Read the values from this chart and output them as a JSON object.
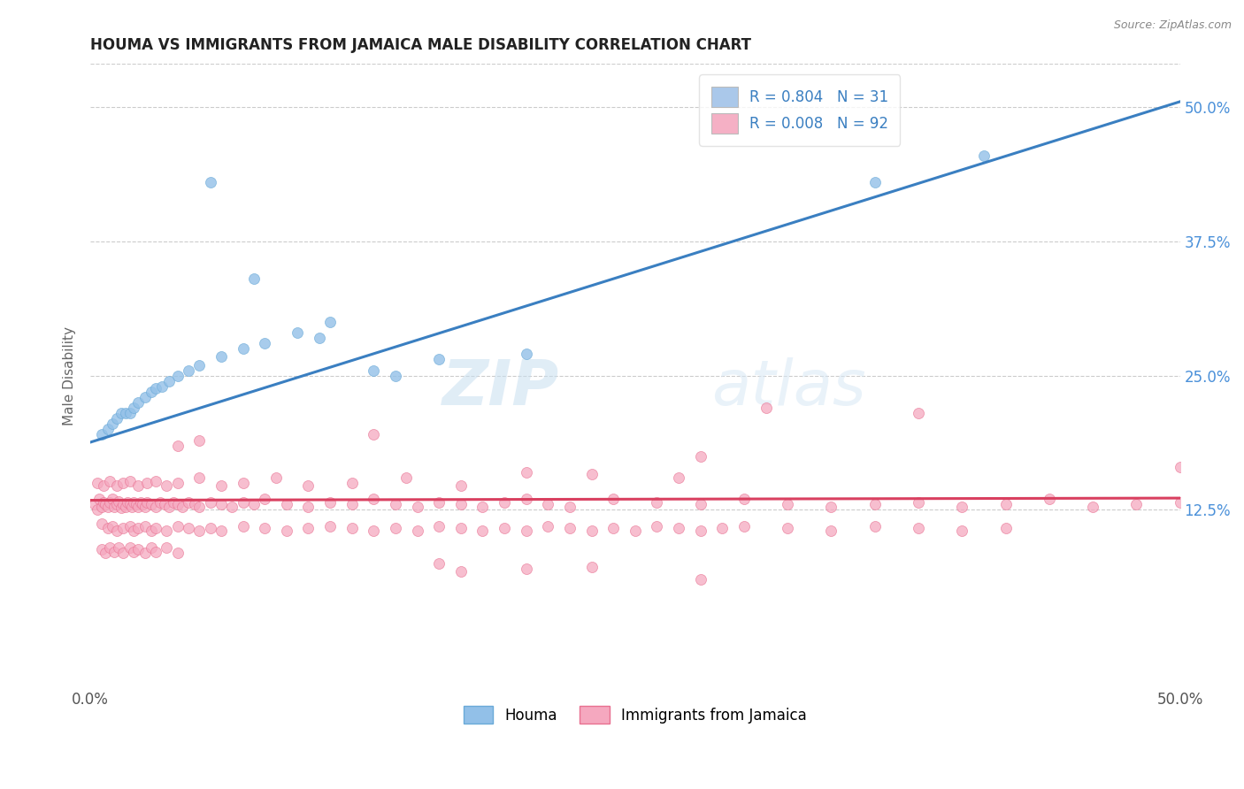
{
  "title": "HOUMA VS IMMIGRANTS FROM JAMAICA MALE DISABILITY CORRELATION CHART",
  "source": "Source: ZipAtlas.com",
  "ylabel": "Male Disability",
  "xlim": [
    0.0,
    0.5
  ],
  "ylim": [
    -0.04,
    0.54
  ],
  "xtick_labels": [
    "0.0%",
    "50.0%"
  ],
  "xtick_vals": [
    0.0,
    0.5
  ],
  "ytick_labels": [
    "12.5%",
    "25.0%",
    "37.5%",
    "50.0%"
  ],
  "ytick_vals": [
    0.125,
    0.25,
    0.375,
    0.5
  ],
  "legend_items": [
    {
      "label": "R = 0.804   N = 31",
      "color": "#aac8ea"
    },
    {
      "label": "R = 0.008   N = 92",
      "color": "#f5b0c5"
    }
  ],
  "legend_bottom": [
    "Houma",
    "Immigrants from Jamaica"
  ],
  "houma_scatter_x": [
    0.005,
    0.008,
    0.01,
    0.012,
    0.014,
    0.016,
    0.018,
    0.02,
    0.022,
    0.025,
    0.028,
    0.03,
    0.033,
    0.036,
    0.04,
    0.045,
    0.05,
    0.06,
    0.07,
    0.08,
    0.095,
    0.11,
    0.13,
    0.16,
    0.2,
    0.055,
    0.075,
    0.105,
    0.14,
    0.36,
    0.41
  ],
  "houma_scatter_y": [
    0.195,
    0.2,
    0.205,
    0.21,
    0.215,
    0.215,
    0.215,
    0.22,
    0.225,
    0.23,
    0.235,
    0.238,
    0.24,
    0.245,
    0.25,
    0.255,
    0.26,
    0.268,
    0.275,
    0.28,
    0.29,
    0.3,
    0.255,
    0.265,
    0.27,
    0.43,
    0.34,
    0.285,
    0.25,
    0.43,
    0.455
  ],
  "jamaica_scatter_x": [
    0.002,
    0.003,
    0.004,
    0.005,
    0.006,
    0.007,
    0.008,
    0.009,
    0.01,
    0.011,
    0.012,
    0.013,
    0.014,
    0.015,
    0.016,
    0.017,
    0.018,
    0.019,
    0.02,
    0.021,
    0.022,
    0.023,
    0.024,
    0.025,
    0.026,
    0.028,
    0.03,
    0.032,
    0.034,
    0.036,
    0.038,
    0.04,
    0.042,
    0.045,
    0.048,
    0.05,
    0.055,
    0.06,
    0.065,
    0.07,
    0.075,
    0.08,
    0.09,
    0.1,
    0.11,
    0.12,
    0.13,
    0.14,
    0.15,
    0.16,
    0.17,
    0.18,
    0.19,
    0.2,
    0.21,
    0.22,
    0.24,
    0.26,
    0.28,
    0.3,
    0.32,
    0.34,
    0.36,
    0.38,
    0.4,
    0.42,
    0.44,
    0.46,
    0.48,
    0.5,
    0.003,
    0.006,
    0.009,
    0.012,
    0.015,
    0.018,
    0.022,
    0.026,
    0.03,
    0.035,
    0.04,
    0.05,
    0.06,
    0.07,
    0.085,
    0.1,
    0.12,
    0.145,
    0.17,
    0.2,
    0.23,
    0.27,
    0.31
  ],
  "jamaica_scatter_y": [
    0.13,
    0.125,
    0.135,
    0.128,
    0.132,
    0.13,
    0.128,
    0.132,
    0.135,
    0.128,
    0.13,
    0.133,
    0.127,
    0.13,
    0.128,
    0.132,
    0.13,
    0.128,
    0.132,
    0.13,
    0.128,
    0.132,
    0.13,
    0.128,
    0.132,
    0.13,
    0.128,
    0.132,
    0.13,
    0.128,
    0.132,
    0.13,
    0.128,
    0.132,
    0.13,
    0.128,
    0.132,
    0.13,
    0.128,
    0.132,
    0.13,
    0.135,
    0.13,
    0.128,
    0.132,
    0.13,
    0.135,
    0.13,
    0.128,
    0.132,
    0.13,
    0.128,
    0.132,
    0.135,
    0.13,
    0.128,
    0.135,
    0.132,
    0.13,
    0.135,
    0.13,
    0.128,
    0.13,
    0.132,
    0.128,
    0.13,
    0.135,
    0.128,
    0.13,
    0.132,
    0.15,
    0.148,
    0.152,
    0.148,
    0.15,
    0.152,
    0.148,
    0.15,
    0.152,
    0.148,
    0.15,
    0.155,
    0.148,
    0.15,
    0.155,
    0.148,
    0.15,
    0.155,
    0.148,
    0.16,
    0.158,
    0.155,
    0.22
  ],
  "jamaica_outliers_x": [
    0.38,
    0.5,
    0.28,
    0.13,
    0.04,
    0.05
  ],
  "jamaica_outliers_y": [
    0.215,
    0.165,
    0.175,
    0.195,
    0.185,
    0.19
  ],
  "jamaica_low_x": [
    0.005,
    0.008,
    0.01,
    0.012,
    0.015,
    0.018,
    0.02,
    0.022,
    0.025,
    0.028,
    0.03,
    0.035,
    0.04,
    0.045,
    0.05,
    0.055,
    0.06,
    0.07,
    0.08,
    0.09,
    0.1,
    0.11,
    0.12,
    0.13,
    0.14,
    0.15,
    0.16,
    0.17,
    0.18,
    0.19,
    0.2,
    0.21,
    0.22,
    0.23,
    0.24,
    0.25,
    0.26,
    0.27,
    0.28,
    0.29,
    0.3,
    0.32,
    0.34,
    0.36,
    0.38,
    0.4,
    0.42
  ],
  "jamaica_low_y": [
    0.112,
    0.108,
    0.11,
    0.106,
    0.108,
    0.11,
    0.106,
    0.108,
    0.11,
    0.106,
    0.108,
    0.106,
    0.11,
    0.108,
    0.106,
    0.108,
    0.106,
    0.11,
    0.108,
    0.106,
    0.108,
    0.11,
    0.108,
    0.106,
    0.108,
    0.106,
    0.11,
    0.108,
    0.106,
    0.108,
    0.106,
    0.11,
    0.108,
    0.106,
    0.108,
    0.106,
    0.11,
    0.108,
    0.106,
    0.108,
    0.11,
    0.108,
    0.106,
    0.11,
    0.108,
    0.106,
    0.108
  ],
  "jamaica_vlow_x": [
    0.005,
    0.007,
    0.009,
    0.011,
    0.013,
    0.015,
    0.018,
    0.02,
    0.022,
    0.025,
    0.028,
    0.03,
    0.035,
    0.04,
    0.16,
    0.2,
    0.23,
    0.17,
    0.28
  ],
  "jamaica_vlow_y": [
    0.088,
    0.085,
    0.09,
    0.086,
    0.09,
    0.085,
    0.09,
    0.086,
    0.088,
    0.085,
    0.09,
    0.086,
    0.09,
    0.085,
    0.075,
    0.07,
    0.072,
    0.068,
    0.06
  ],
  "houma_line_x": [
    0.0,
    0.5
  ],
  "houma_line_y": [
    0.188,
    0.505
  ],
  "jamaica_line_x": [
    0.0,
    0.5
  ],
  "jamaica_line_y": [
    0.134,
    0.136
  ],
  "dot_size": 75,
  "houma_dot_color": "#92c0e8",
  "houma_dot_edge": "#6aaad8",
  "jamaica_dot_color": "#f5a8bf",
  "jamaica_dot_edge": "#e87090",
  "houma_line_color": "#3a7fc1",
  "jamaica_line_color": "#d94060",
  "grid_color": "#cccccc",
  "bg_color": "#ffffff",
  "title_color": "#222222",
  "right_tick_color": "#4a90d9"
}
